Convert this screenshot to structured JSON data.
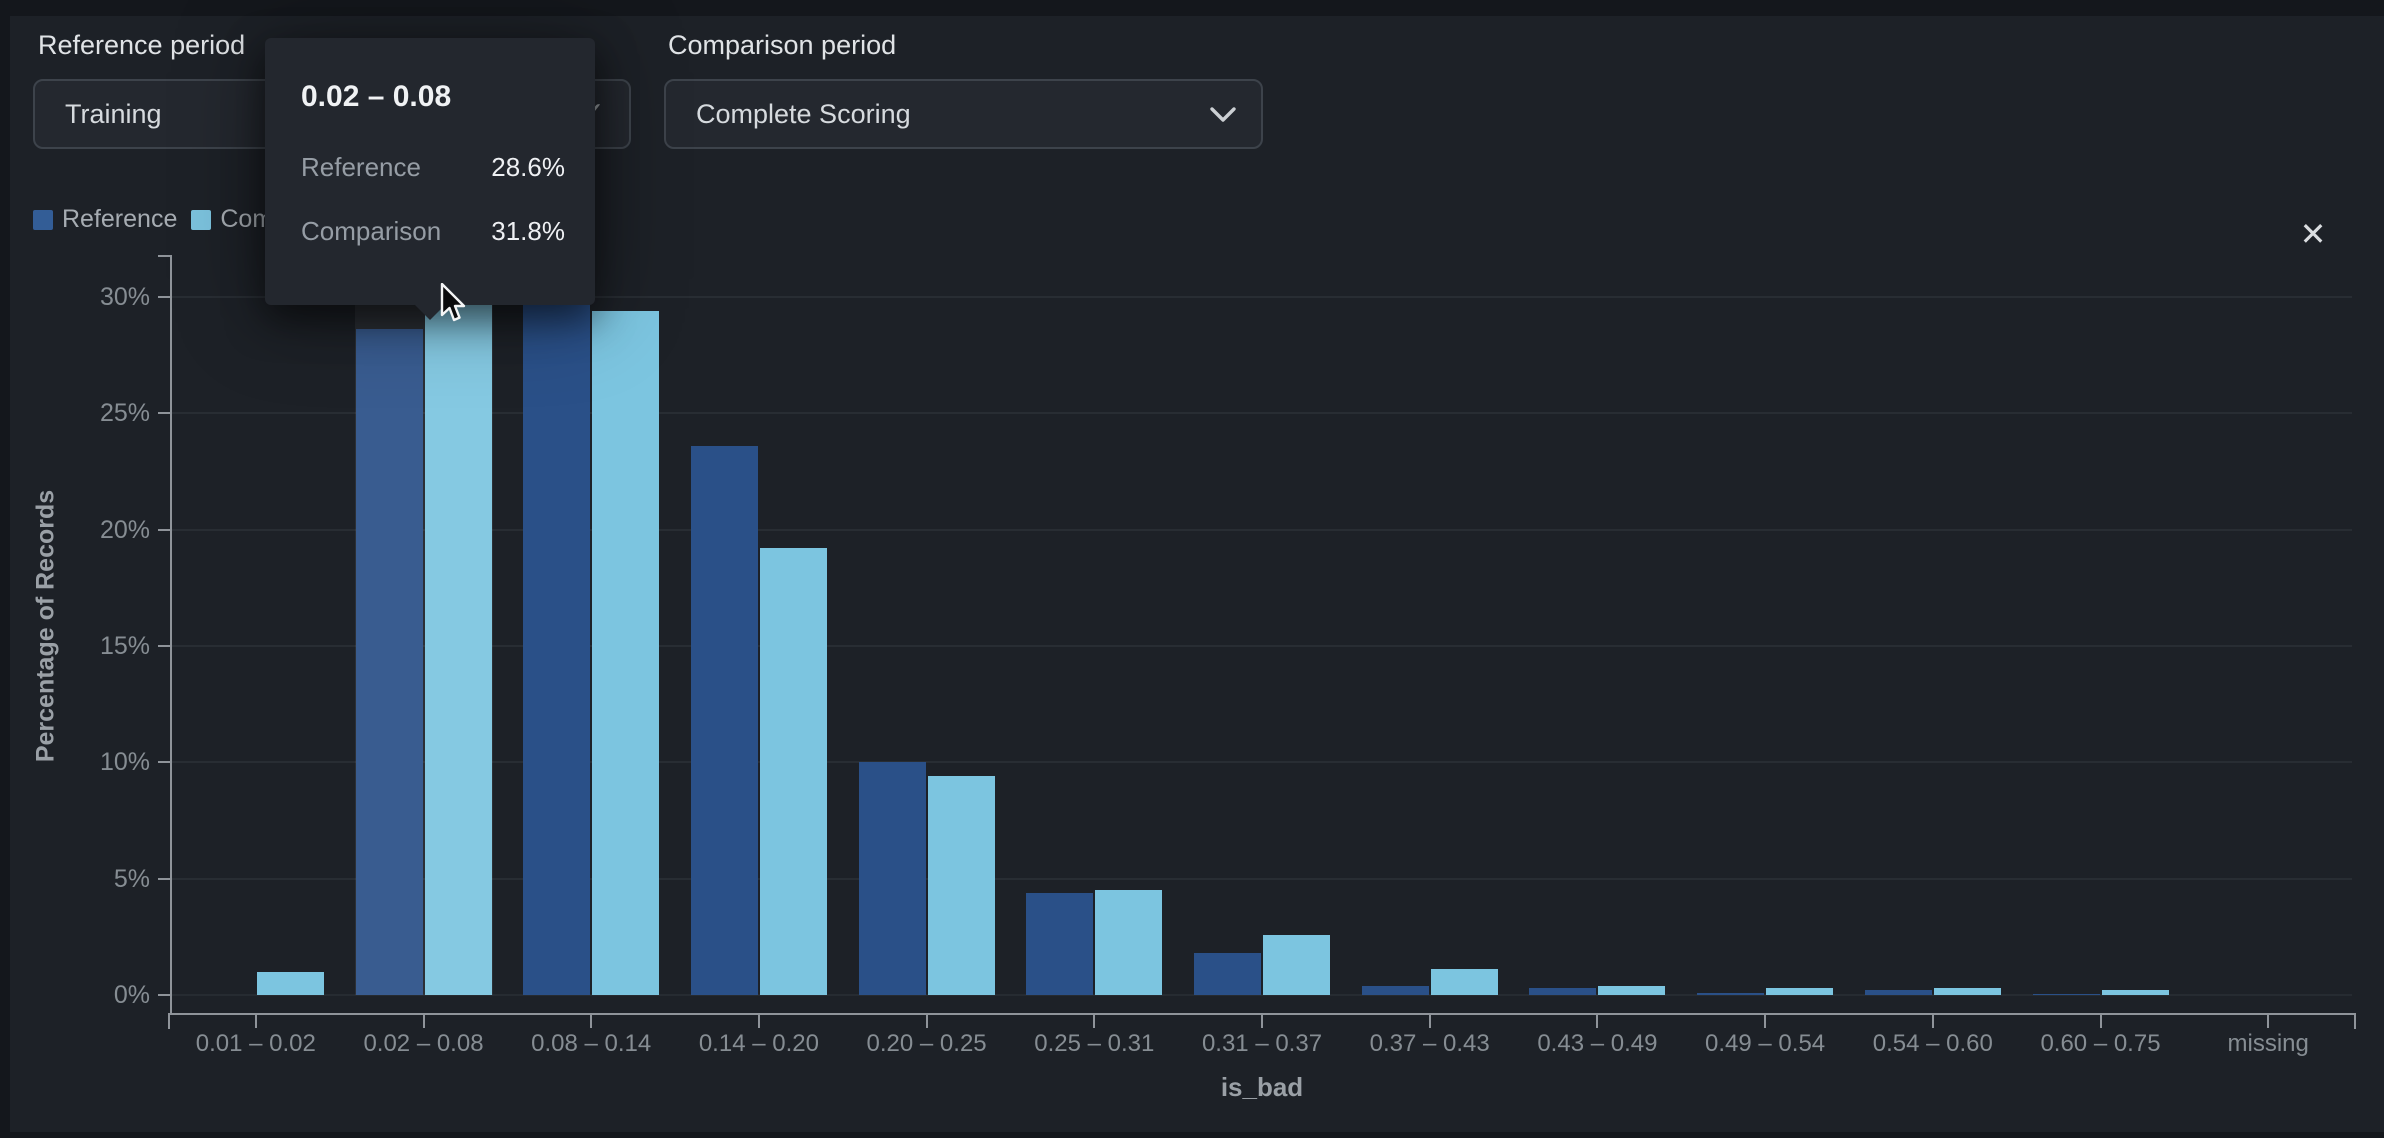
{
  "header": {
    "reference_period_label": "Reference period",
    "reference_period_value": "Training",
    "comparison_period_label": "Comparison period",
    "comparison_period_value": "Complete Scoring"
  },
  "icons": {
    "checkmark": "✓",
    "close": "✕"
  },
  "legend": {
    "items": [
      {
        "label": "Reference",
        "color": "#335d96"
      },
      {
        "label": "Comparison",
        "color": "#7cc3de"
      }
    ]
  },
  "tooltip": {
    "title": "0.02 – 0.08",
    "rows": [
      {
        "label": "Reference",
        "value": "28.6%"
      },
      {
        "label": "Comparison",
        "value": "31.8%"
      }
    ]
  },
  "colors": {
    "background": "#1d2127",
    "grid": "#282d33",
    "zero_line": "#262b31",
    "axis": "#8f949a",
    "tick_text": "#868d93",
    "hover_band": "rgba(255,255,255,0.07)",
    "reference_bar": "#2a5088",
    "comparison_bar": "#7cc5e0"
  },
  "chart_data": {
    "type": "bar",
    "title": "",
    "xlabel": "is_bad",
    "ylabel": "Percentage of Records",
    "categories": [
      "0.01 – 0.02",
      "0.02 – 0.08",
      "0.08 – 0.14",
      "0.14 – 0.20",
      "0.20 – 0.25",
      "0.25 – 0.31",
      "0.31 – 0.37",
      "0.37 – 0.43",
      "0.43 – 0.49",
      "0.49 – 0.54",
      "0.54 – 0.60",
      "0.60 – 0.75",
      "missing"
    ],
    "series": [
      {
        "name": "Reference",
        "color": "#2a5088",
        "values": [
          0,
          28.6,
          30.4,
          23.6,
          10.0,
          4.4,
          1.8,
          0.4,
          0.3,
          0.1,
          0.2,
          0.05,
          0
        ]
      },
      {
        "name": "Comparison",
        "color": "#7cc5e0",
        "values": [
          1.0,
          31.8,
          29.4,
          19.2,
          9.4,
          4.5,
          2.6,
          1.1,
          0.4,
          0.3,
          0.3,
          0.2,
          0
        ]
      }
    ],
    "ylim": [
      0,
      31.75
    ],
    "yticks": [
      "0%",
      "5%",
      "10%",
      "15%",
      "20%",
      "25%",
      "30%"
    ],
    "grid": true,
    "legend_position": "top-left",
    "hovered_category_index": 1
  }
}
